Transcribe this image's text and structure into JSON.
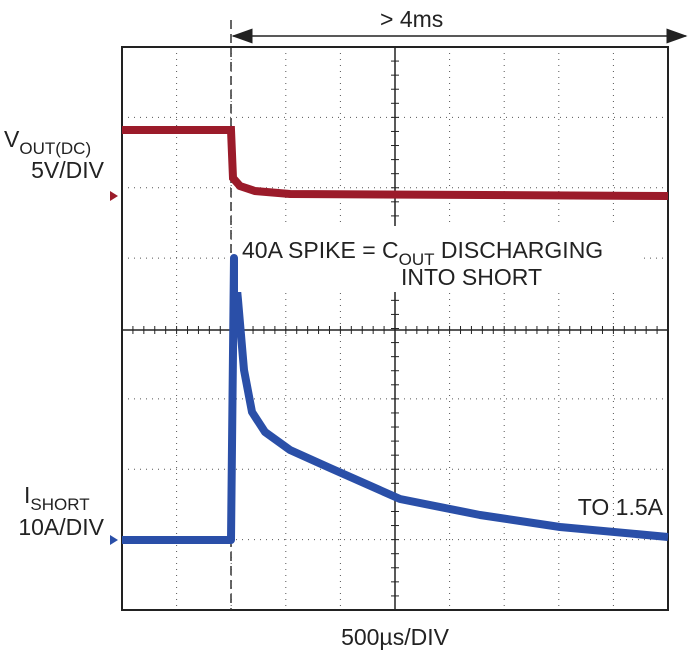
{
  "header": {
    "span": "> 4ms"
  },
  "vout": {
    "symbol": "V",
    "subscript": "OUT(DC)",
    "scale": "5V/DIV"
  },
  "ishort": {
    "symbol": "I",
    "subscript": "SHORT",
    "scale": "10A/DIV"
  },
  "spike_note": {
    "line1_start": "40A SPIKE = C",
    "line1_subscript": "OUT",
    "line1_end": " DISCHARGING",
    "line2": "INTO SHORT"
  },
  "end_note": "TO 1.5A",
  "time_scale": "500µs/DIV"
}
